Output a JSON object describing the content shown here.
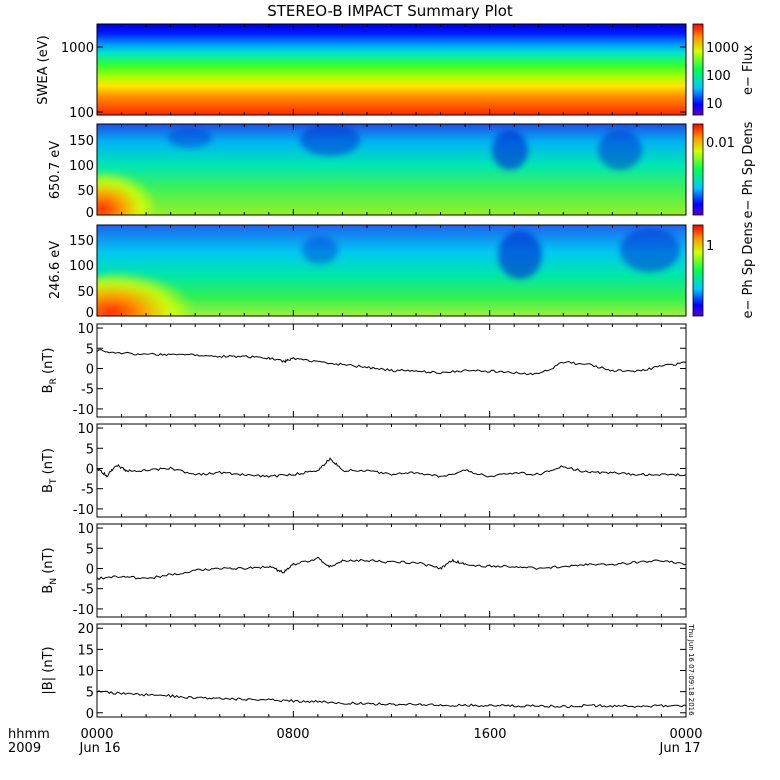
{
  "title": "STEREO-B IMPACT Summary Plot",
  "timestamp": "Thu Jun 16 07:09:18 2016",
  "time_axis": {
    "corner_label_top": "hhmm",
    "corner_label_bottom": "2009",
    "ticks": [
      {
        "top": "0000",
        "bottom": "Jun 16",
        "hour": 0
      },
      {
        "top": "0800",
        "bottom": "",
        "hour": 8
      },
      {
        "top": "1600",
        "bottom": "",
        "hour": 16
      },
      {
        "top": "0000",
        "bottom": "Jun 17",
        "hour": 24
      }
    ],
    "range_hours": [
      0,
      24
    ]
  },
  "spectrograms": [
    {
      "name": "swea",
      "ylabel": "SWEA (eV)",
      "cbar_label": "e− Flux",
      "yticks": [
        "1000",
        "100"
      ],
      "cbar_ticks": [
        "1000",
        "100",
        "10"
      ],
      "ylog": true,
      "ylim": [
        90,
        2000
      ],
      "colormap": "rainbow"
    },
    {
      "name": "pad650",
      "ylabel": "650.7 eV",
      "cbar_label": "e− Ph Sp Dens",
      "yticks": [
        "150",
        "100",
        "50",
        "0"
      ],
      "cbar_ticks": [
        "0.01"
      ],
      "ylim": [
        0,
        180
      ],
      "colormap": "rainbow"
    },
    {
      "name": "pad246",
      "ylabel": "246.6 eV",
      "cbar_label": "e− Ph Sp Dens",
      "yticks": [
        "150",
        "100",
        "50",
        "0"
      ],
      "cbar_ticks": [
        "1"
      ],
      "ylim": [
        0,
        180
      ],
      "colormap": "rainbow"
    }
  ],
  "chart_data": [
    {
      "type": "line",
      "name": "br",
      "ylabel": "B_R (nT)",
      "ylabel_main": "B",
      "ylabel_sub": "R",
      "ylabel_unit": " (nT)",
      "ylim": [
        -12,
        11
      ],
      "yticks": [
        "10",
        "5",
        "0",
        "-5",
        "-10"
      ],
      "ytick_values": [
        10,
        5,
        0,
        -5,
        -10
      ],
      "x": [
        0,
        1,
        2,
        3,
        4,
        5,
        6,
        7,
        7.6,
        8,
        9,
        10,
        11,
        12,
        13,
        14,
        15,
        16,
        17,
        18,
        19,
        20,
        21,
        22,
        23,
        24
      ],
      "values": [
        4.5,
        3.8,
        3.5,
        3.4,
        3.3,
        3.0,
        3.0,
        2.6,
        1.7,
        2.5,
        1.5,
        1.0,
        0.3,
        -0.5,
        -0.5,
        -1.2,
        -0.5,
        -0.7,
        -1.0,
        -1.5,
        1.5,
        1.0,
        -0.5,
        -0.6,
        0.5,
        1.5
      ]
    },
    {
      "type": "line",
      "name": "bt",
      "ylabel": "B_T (nT)",
      "ylabel_main": "B",
      "ylabel_sub": "T",
      "ylabel_unit": " (nT)",
      "ylim": [
        -12,
        11
      ],
      "yticks": [
        "10",
        "5",
        "0",
        "-5",
        "-10"
      ],
      "ytick_values": [
        10,
        5,
        0,
        -5,
        -10
      ],
      "x": [
        0,
        0.4,
        0.8,
        1.2,
        2,
        3,
        4,
        5,
        6,
        7,
        8,
        9,
        9.5,
        10,
        11,
        12,
        13,
        14,
        15,
        16,
        17,
        18,
        19,
        20,
        21,
        22,
        23,
        24
      ],
      "values": [
        0.0,
        -1.8,
        0.8,
        -0.5,
        -0.5,
        0.0,
        -1.5,
        -1.0,
        -1.5,
        -2.0,
        -1.5,
        -0.5,
        2.5,
        -0.5,
        -0.5,
        -1.5,
        -1.0,
        -2.0,
        -0.5,
        -2.0,
        -1.0,
        -1.5,
        0.5,
        -1.0,
        -1.0,
        -1.5,
        -1.5,
        -1.5
      ]
    },
    {
      "type": "line",
      "name": "bn",
      "ylabel": "B_N (nT)",
      "ylabel_main": "B",
      "ylabel_sub": "N",
      "ylabel_unit": " (nT)",
      "ylim": [
        -12,
        11
      ],
      "yticks": [
        "10",
        "5",
        "0",
        "-5",
        "-10"
      ],
      "ytick_values": [
        10,
        5,
        0,
        -5,
        -10
      ],
      "x": [
        0,
        1,
        2,
        3,
        4,
        5,
        6,
        7,
        7.6,
        8,
        9,
        9.5,
        10,
        11,
        12,
        13,
        14,
        14.5,
        15,
        16,
        17,
        18,
        19,
        20,
        21,
        22,
        23,
        24
      ],
      "values": [
        -2.5,
        -2.0,
        -2.5,
        -1.5,
        -0.5,
        0.0,
        0.0,
        0.5,
        -1.0,
        1.0,
        2.5,
        0.5,
        2.0,
        2.0,
        1.5,
        1.5,
        0.0,
        2.0,
        1.0,
        0.5,
        0.5,
        0.0,
        0.5,
        1.0,
        1.0,
        1.5,
        2.0,
        1.0
      ]
    },
    {
      "type": "line",
      "name": "bmag",
      "ylabel": "|B| (nT)",
      "ylabel_main": "|B|",
      "ylabel_sub": "",
      "ylabel_unit": " (nT)",
      "ylim": [
        -1,
        21
      ],
      "yticks": [
        "20",
        "15",
        "10",
        "5",
        "0"
      ],
      "ytick_values": [
        20,
        15,
        10,
        5,
        0
      ],
      "x": [
        0,
        1,
        2,
        3,
        4,
        5,
        6,
        7,
        8,
        9,
        10,
        11,
        12,
        13,
        14,
        15,
        16,
        17,
        18,
        19,
        20,
        21,
        22,
        23,
        24
      ],
      "values": [
        5.0,
        4.5,
        4.3,
        4.0,
        3.6,
        3.3,
        3.2,
        3.0,
        2.8,
        2.6,
        2.3,
        2.2,
        2.0,
        2.0,
        1.8,
        1.8,
        1.7,
        1.6,
        1.6,
        1.5,
        1.7,
        1.6,
        1.5,
        1.6,
        1.7
      ]
    }
  ]
}
